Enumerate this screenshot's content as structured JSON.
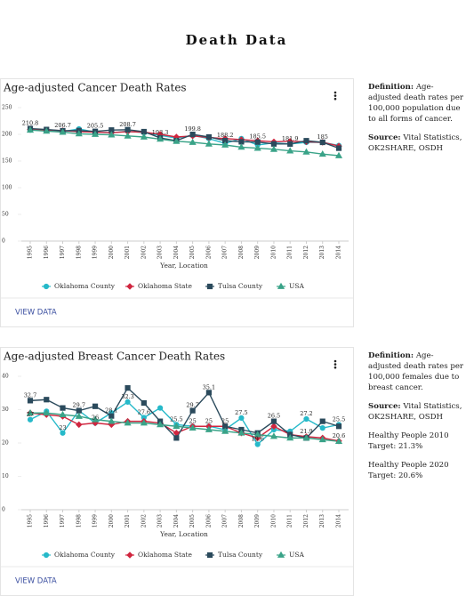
{
  "title": "Death Data",
  "chart_data": [
    {
      "type": "line",
      "title": "Age-adjusted Cancer Death Rates",
      "x_label": "Year, Location",
      "categories": [
        "1995",
        "1996",
        "1997",
        "1998",
        "1999",
        "2000",
        "2001",
        "2002",
        "2003",
        "2004",
        "2005",
        "2006",
        "2007",
        "2008",
        "2009",
        "2010",
        "2011",
        "2012",
        "2013",
        "2014"
      ],
      "ylim": [
        0,
        250
      ],
      "yticks": [
        0,
        50,
        100,
        150,
        200,
        250
      ],
      "grid": false,
      "legend": "bottom",
      "series": [
        {
          "name": "Oklahoma County",
          "color": "#26b9c9",
          "marker": "circle",
          "values": [
            208,
            207,
            205,
            210,
            204,
            203,
            206,
            203,
            198,
            193,
            198,
            192,
            183,
            192,
            180,
            184,
            182,
            185,
            185,
            179
          ]
        },
        {
          "name": "Oklahoma State",
          "color": "#d0263f",
          "marker": "diamond",
          "values": [
            209,
            208,
            207,
            205,
            204,
            203,
            205,
            204,
            200,
            195,
            197,
            194,
            192,
            190,
            188,
            186,
            187,
            186,
            185,
            178
          ]
        },
        {
          "name": "Tulsa County",
          "color": "#2b4a5c",
          "marker": "square",
          "values": [
            210.8,
            209,
            206.7,
            207,
            205.5,
            208,
            208.7,
            205,
            193.3,
            188,
            199.8,
            195,
            188.2,
            186,
            185.5,
            182,
            181.9,
            188,
            185,
            174
          ],
          "value_labels": [
            "210.8",
            null,
            "206.7",
            null,
            "205.5",
            null,
            "208.7",
            null,
            "193.3",
            null,
            "199.8",
            null,
            "188.2",
            null,
            "185.5",
            null,
            "181.9",
            null,
            "185",
            null
          ]
        },
        {
          "name": "USA",
          "color": "#3aa388",
          "marker": "triangle",
          "values": [
            208,
            206,
            204,
            201,
            200,
            199,
            197,
            195,
            191,
            187,
            185,
            182,
            180,
            176,
            174,
            172,
            169,
            167,
            163,
            160
          ]
        }
      ]
    },
    {
      "type": "line",
      "title": "Age-adjusted Breast Cancer Death Rates",
      "x_label": "Year, Location",
      "categories": [
        "1995",
        "1996",
        "1997",
        "1998",
        "1999",
        "2000",
        "2001",
        "2002",
        "2003",
        "2004",
        "2005",
        "2006",
        "2007",
        "2008",
        "2009",
        "2010",
        "2011",
        "2012",
        "2013",
        "2014"
      ],
      "ylim": [
        0,
        40
      ],
      "yticks": [
        0,
        10,
        20,
        30,
        40
      ],
      "grid": false,
      "legend": "bottom",
      "series": [
        {
          "name": "Oklahoma County",
          "color": "#26b9c9",
          "marker": "circle",
          "values": [
            27,
            29.5,
            23,
            29.7,
            26,
            29,
            32.3,
            27.6,
            30.5,
            25.5,
            25,
            25,
            24,
            27.5,
            19.6,
            24,
            23.5,
            27.2,
            24.5,
            25.5
          ],
          "value_labels": [
            "27",
            null,
            "23",
            null,
            "26",
            null,
            "32.3",
            "27.6",
            null,
            "25.5",
            "25",
            "25",
            null,
            "27.5",
            "19.6",
            null,
            null,
            "27.2",
            null,
            "25.5"
          ]
        },
        {
          "name": "Oklahoma State",
          "color": "#d0263f",
          "marker": "diamond",
          "values": [
            29,
            28.5,
            28,
            25.5,
            26,
            25.5,
            26.5,
            26.5,
            26,
            23,
            25,
            25,
            25,
            23,
            21.5,
            25,
            22.5,
            21.9,
            21.5,
            20.6
          ],
          "value_labels": [
            null,
            null,
            null,
            null,
            null,
            null,
            null,
            null,
            null,
            null,
            null,
            null,
            null,
            null,
            null,
            null,
            null,
            "21.9",
            null,
            "20.6"
          ]
        },
        {
          "name": "Tulsa County",
          "color": "#2b4a5c",
          "marker": "square",
          "values": [
            32.7,
            33,
            30.5,
            29.7,
            31,
            28.1,
            36.5,
            32,
            26.5,
            21.5,
            29.7,
            35.1,
            25,
            24,
            23,
            26.5,
            22.5,
            21.5,
            26.5,
            25
          ],
          "value_labels": [
            "32.7",
            null,
            null,
            "29.7",
            null,
            "28.1",
            null,
            null,
            null,
            null,
            "29.7",
            "35.1",
            "25",
            null,
            null,
            "26.5",
            null,
            null,
            null,
            null
          ]
        },
        {
          "name": "USA",
          "color": "#3aa388",
          "marker": "triangle",
          "values": [
            29,
            29,
            28.5,
            28,
            27,
            26.5,
            26,
            26,
            25.5,
            25,
            24.5,
            24,
            23.5,
            23,
            22.5,
            22,
            21.5,
            21.5,
            21,
            20.5
          ]
        }
      ]
    }
  ],
  "cards": [
    {
      "action": "VIEW DATA"
    },
    {
      "action": "VIEW DATA"
    }
  ],
  "notes": [
    [
      {
        "label": "Definition:",
        "text": "Age-adjusted death rates per 100,000 population due to all forms of cancer."
      },
      {
        "label": "Source:",
        "text": "Vital Statistics, OK2SHARE, OSDH"
      }
    ],
    [
      {
        "label": "Definition:",
        "text": "Age-adjusted death rates per 100,000 females due to breast cancer."
      },
      {
        "label": "Source:",
        "text": "Vital Statistics, OK2SHARE, OSDH"
      },
      {
        "label": "Healthy People 2010",
        "text": "Target: 21.3%"
      },
      {
        "label": "Healthy People 2020",
        "text": "Target: 20.6%"
      }
    ]
  ]
}
